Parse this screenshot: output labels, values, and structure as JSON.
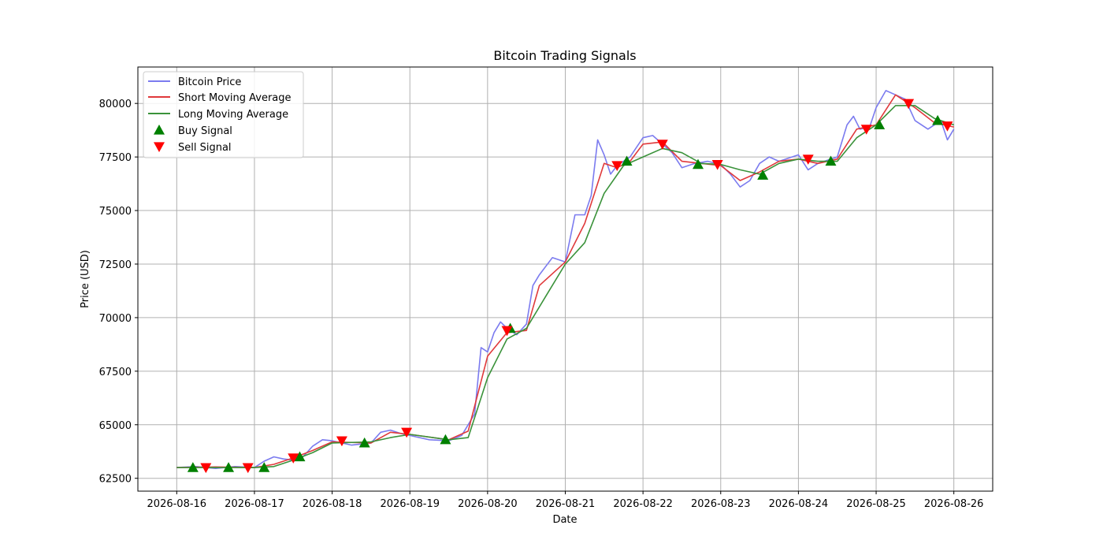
{
  "chart_data": {
    "type": "line",
    "title": "Bitcoin Trading Signals",
    "xlabel": "Date",
    "ylabel": "Price (USD)",
    "x_start": "2026-08-16",
    "x_end": "2026-08-26",
    "xlim": [
      "2026-08-15 12:00",
      "2026-08-26 12:00"
    ],
    "ylim": [
      61900,
      81700
    ],
    "grid": true,
    "legend_position": "top-left",
    "x_ticks": [
      "2026-08-16",
      "2026-08-17",
      "2026-08-18",
      "2026-08-19",
      "2026-08-20",
      "2026-08-21",
      "2026-08-22",
      "2026-08-23",
      "2026-08-24",
      "2026-08-25",
      "2026-08-26"
    ],
    "y_ticks": [
      62500,
      65000,
      67500,
      70000,
      72500,
      75000,
      77500,
      80000
    ],
    "y_tick_labels": [
      "62500",
      "65000",
      "67500",
      "70000",
      "72500",
      "75000",
      "77500",
      "80000"
    ],
    "series": [
      {
        "name": "Bitcoin Price",
        "color": "#7b7bef",
        "points": [
          [
            "2026-08-16 00:00",
            63000
          ],
          [
            "2026-08-16 06:00",
            63050
          ],
          [
            "2026-08-16 12:00",
            62960
          ],
          [
            "2026-08-16 18:00",
            63050
          ],
          [
            "2026-08-17 00:00",
            63000
          ],
          [
            "2026-08-17 03:00",
            63300
          ],
          [
            "2026-08-17 06:00",
            63500
          ],
          [
            "2026-08-17 09:00",
            63400
          ],
          [
            "2026-08-17 12:00",
            63350
          ],
          [
            "2026-08-17 15:00",
            63500
          ],
          [
            "2026-08-17 18:00",
            64000
          ],
          [
            "2026-08-17 21:00",
            64300
          ],
          [
            "2026-08-18 00:00",
            64250
          ],
          [
            "2026-08-18 06:00",
            64050
          ],
          [
            "2026-08-18 12:00",
            64150
          ],
          [
            "2026-08-18 15:00",
            64650
          ],
          [
            "2026-08-18 18:00",
            64750
          ],
          [
            "2026-08-18 21:00",
            64600
          ],
          [
            "2026-08-19 00:00",
            64500
          ],
          [
            "2026-08-19 06:00",
            64300
          ],
          [
            "2026-08-19 12:00",
            64250
          ],
          [
            "2026-08-19 16:00",
            64500
          ],
          [
            "2026-08-19 20:00",
            65500
          ],
          [
            "2026-08-19 22:00",
            68600
          ],
          [
            "2026-08-20 00:00",
            68400
          ],
          [
            "2026-08-20 02:00",
            69300
          ],
          [
            "2026-08-20 04:00",
            69800
          ],
          [
            "2026-08-20 06:00",
            69500
          ],
          [
            "2026-08-20 09:00",
            69200
          ],
          [
            "2026-08-20 12:00",
            69700
          ],
          [
            "2026-08-20 14:00",
            71500
          ],
          [
            "2026-08-20 16:00",
            72000
          ],
          [
            "2026-08-20 20:00",
            72800
          ],
          [
            "2026-08-21 00:00",
            72600
          ],
          [
            "2026-08-21 03:00",
            74800
          ],
          [
            "2026-08-21 06:00",
            74800
          ],
          [
            "2026-08-21 08:00",
            75700
          ],
          [
            "2026-08-21 10:00",
            78300
          ],
          [
            "2026-08-21 12:00",
            77600
          ],
          [
            "2026-08-21 14:00",
            76700
          ],
          [
            "2026-08-21 16:00",
            77100
          ],
          [
            "2026-08-21 20:00",
            77500
          ],
          [
            "2026-08-22 00:00",
            78400
          ],
          [
            "2026-08-22 03:00",
            78500
          ],
          [
            "2026-08-22 06:00",
            78100
          ],
          [
            "2026-08-22 09:00",
            77700
          ],
          [
            "2026-08-22 12:00",
            77000
          ],
          [
            "2026-08-22 16:00",
            77200
          ],
          [
            "2026-08-22 20:00",
            77300
          ],
          [
            "2026-08-23 00:00",
            77150
          ],
          [
            "2026-08-23 03:00",
            76700
          ],
          [
            "2026-08-23 06:00",
            76100
          ],
          [
            "2026-08-23 09:00",
            76400
          ],
          [
            "2026-08-23 12:00",
            77200
          ],
          [
            "2026-08-23 15:00",
            77500
          ],
          [
            "2026-08-23 18:00",
            77300
          ],
          [
            "2026-08-24 00:00",
            77600
          ],
          [
            "2026-08-24 03:00",
            76900
          ],
          [
            "2026-08-24 06:00",
            77200
          ],
          [
            "2026-08-24 12:00",
            77500
          ],
          [
            "2026-08-24 15:00",
            79000
          ],
          [
            "2026-08-24 17:00",
            79400
          ],
          [
            "2026-08-24 19:00",
            78800
          ],
          [
            "2026-08-24 22:00",
            78900
          ],
          [
            "2026-08-25 00:00",
            79800
          ],
          [
            "2026-08-25 03:00",
            80600
          ],
          [
            "2026-08-25 06:00",
            80400
          ],
          [
            "2026-08-25 09:00",
            80200
          ],
          [
            "2026-08-25 12:00",
            79200
          ],
          [
            "2026-08-25 16:00",
            78800
          ],
          [
            "2026-08-25 20:00",
            79200
          ],
          [
            "2026-08-25 22:00",
            78300
          ],
          [
            "2026-08-26 00:00",
            78800
          ]
        ]
      },
      {
        "name": "Short Moving Average",
        "color": "#e0393b",
        "points": [
          [
            "2026-08-16 00:00",
            63000
          ],
          [
            "2026-08-16 12:00",
            63030
          ],
          [
            "2026-08-17 00:00",
            63000
          ],
          [
            "2026-08-17 06:00",
            63150
          ],
          [
            "2026-08-17 12:00",
            63450
          ],
          [
            "2026-08-17 18:00",
            63800
          ],
          [
            "2026-08-18 00:00",
            64200
          ],
          [
            "2026-08-18 12:00",
            64150
          ],
          [
            "2026-08-18 18:00",
            64650
          ],
          [
            "2026-08-19 00:00",
            64550
          ],
          [
            "2026-08-19 12:00",
            64300
          ],
          [
            "2026-08-19 18:00",
            64700
          ],
          [
            "2026-08-20 00:00",
            68200
          ],
          [
            "2026-08-20 06:00",
            69300
          ],
          [
            "2026-08-20 12:00",
            69400
          ],
          [
            "2026-08-20 16:00",
            71500
          ],
          [
            "2026-08-21 00:00",
            72600
          ],
          [
            "2026-08-21 06:00",
            74400
          ],
          [
            "2026-08-21 12:00",
            77200
          ],
          [
            "2026-08-21 16:00",
            77000
          ],
          [
            "2026-08-21 20:00",
            77300
          ],
          [
            "2026-08-22 00:00",
            78100
          ],
          [
            "2026-08-22 06:00",
            78200
          ],
          [
            "2026-08-22 12:00",
            77300
          ],
          [
            "2026-08-22 18:00",
            77200
          ],
          [
            "2026-08-23 00:00",
            77100
          ],
          [
            "2026-08-23 06:00",
            76400
          ],
          [
            "2026-08-23 12:00",
            76800
          ],
          [
            "2026-08-23 18:00",
            77300
          ],
          [
            "2026-08-24 00:00",
            77400
          ],
          [
            "2026-08-24 06:00",
            77200
          ],
          [
            "2026-08-24 12:00",
            77400
          ],
          [
            "2026-08-24 18:00",
            78800
          ],
          [
            "2026-08-25 00:00",
            79000
          ],
          [
            "2026-08-25 06:00",
            80400
          ],
          [
            "2026-08-25 12:00",
            79800
          ],
          [
            "2026-08-25 18:00",
            79100
          ],
          [
            "2026-08-26 00:00",
            78900
          ]
        ]
      },
      {
        "name": "Long Moving Average",
        "color": "#3a923a",
        "points": [
          [
            "2026-08-16 00:00",
            63000
          ],
          [
            "2026-08-16 12:00",
            63000
          ],
          [
            "2026-08-17 00:00",
            63000
          ],
          [
            "2026-08-17 06:00",
            63050
          ],
          [
            "2026-08-17 12:00",
            63350
          ],
          [
            "2026-08-17 18:00",
            63700
          ],
          [
            "2026-08-18 00:00",
            64150
          ],
          [
            "2026-08-18 12:00",
            64200
          ],
          [
            "2026-08-18 18:00",
            64400
          ],
          [
            "2026-08-19 00:00",
            64550
          ],
          [
            "2026-08-19 12:00",
            64300
          ],
          [
            "2026-08-19 18:00",
            64400
          ],
          [
            "2026-08-20 00:00",
            67200
          ],
          [
            "2026-08-20 06:00",
            69000
          ],
          [
            "2026-08-20 12:00",
            69500
          ],
          [
            "2026-08-20 18:00",
            71000
          ],
          [
            "2026-08-21 00:00",
            72500
          ],
          [
            "2026-08-21 06:00",
            73500
          ],
          [
            "2026-08-21 12:00",
            75800
          ],
          [
            "2026-08-21 18:00",
            77100
          ],
          [
            "2026-08-22 00:00",
            77500
          ],
          [
            "2026-08-22 06:00",
            77900
          ],
          [
            "2026-08-22 12:00",
            77700
          ],
          [
            "2026-08-22 18:00",
            77200
          ],
          [
            "2026-08-23 00:00",
            77150
          ],
          [
            "2026-08-23 06:00",
            76900
          ],
          [
            "2026-08-23 12:00",
            76700
          ],
          [
            "2026-08-23 18:00",
            77200
          ],
          [
            "2026-08-24 00:00",
            77400
          ],
          [
            "2026-08-24 06:00",
            77300
          ],
          [
            "2026-08-24 12:00",
            77300
          ],
          [
            "2026-08-24 18:00",
            78400
          ],
          [
            "2026-08-25 00:00",
            79000
          ],
          [
            "2026-08-25 06:00",
            79900
          ],
          [
            "2026-08-25 12:00",
            79900
          ],
          [
            "2026-08-25 18:00",
            79300
          ],
          [
            "2026-08-26 00:00",
            79000
          ]
        ]
      }
    ],
    "buy_signals": {
      "name": "Buy Signal",
      "color": "#008000",
      "points": [
        [
          "2026-08-16 05:00",
          63000
        ],
        [
          "2026-08-16 16:00",
          63000
        ],
        [
          "2026-08-17 03:00",
          63000
        ],
        [
          "2026-08-17 14:00",
          63500
        ],
        [
          "2026-08-18 10:00",
          64150
        ],
        [
          "2026-08-19 11:00",
          64300
        ],
        [
          "2026-08-20 07:00",
          69500
        ],
        [
          "2026-08-21 19:00",
          77300
        ],
        [
          "2026-08-22 17:00",
          77150
        ],
        [
          "2026-08-23 13:00",
          76650
        ],
        [
          "2026-08-24 10:00",
          77300
        ],
        [
          "2026-08-25 01:00",
          79000
        ],
        [
          "2026-08-25 19:00",
          79200
        ]
      ]
    },
    "sell_signals": {
      "name": "Sell Signal",
      "color": "#ff0000",
      "points": [
        [
          "2026-08-16 09:00",
          63000
        ],
        [
          "2026-08-16 22:00",
          63000
        ],
        [
          "2026-08-17 12:00",
          63450
        ],
        [
          "2026-08-18 03:00",
          64250
        ],
        [
          "2026-08-18 23:00",
          64650
        ],
        [
          "2026-08-20 06:00",
          69400
        ],
        [
          "2026-08-21 16:00",
          77100
        ],
        [
          "2026-08-22 06:00",
          78100
        ],
        [
          "2026-08-22 23:00",
          77150
        ],
        [
          "2026-08-24 03:00",
          77400
        ],
        [
          "2026-08-24 21:00",
          78800
        ],
        [
          "2026-08-25 10:00",
          80000
        ],
        [
          "2026-08-25 22:00",
          78950
        ]
      ]
    }
  }
}
